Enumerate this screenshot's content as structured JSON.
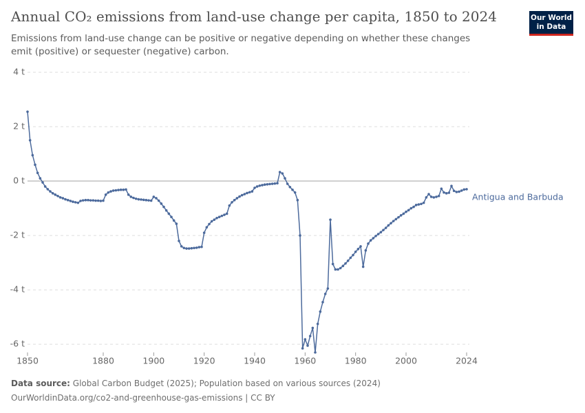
{
  "chart_data": {
    "type": "line",
    "title": "Annual CO₂ emissions from land-use change per capita, 1850 to 2024",
    "subtitle": "Emissions from land-use change can be positive or negative depending on whether these changes emit (positive) or sequester (negative) carbon.",
    "logo": [
      "Our World",
      "in Data"
    ],
    "source_label": "Data source:",
    "source": "Global Carbon Budget (2025); Population based on various sources (2024)",
    "url": "OurWorldinData.org/co2-and-greenhouse-gas-emissions | CC BY",
    "x": [
      1850,
      1851,
      1852,
      1853,
      1854,
      1855,
      1856,
      1857,
      1858,
      1859,
      1860,
      1861,
      1862,
      1863,
      1864,
      1865,
      1866,
      1867,
      1868,
      1869,
      1870,
      1871,
      1872,
      1873,
      1874,
      1875,
      1876,
      1877,
      1878,
      1879,
      1880,
      1881,
      1882,
      1883,
      1884,
      1885,
      1886,
      1887,
      1888,
      1889,
      1890,
      1891,
      1892,
      1893,
      1894,
      1895,
      1896,
      1897,
      1898,
      1899,
      1900,
      1901,
      1902,
      1903,
      1904,
      1905,
      1906,
      1907,
      1908,
      1909,
      1910,
      1911,
      1912,
      1913,
      1914,
      1915,
      1916,
      1917,
      1918,
      1919,
      1920,
      1921,
      1922,
      1923,
      1924,
      1925,
      1926,
      1927,
      1928,
      1929,
      1930,
      1931,
      1932,
      1933,
      1934,
      1935,
      1936,
      1937,
      1938,
      1939,
      1940,
      1941,
      1942,
      1943,
      1944,
      1945,
      1946,
      1947,
      1948,
      1949,
      1950,
      1951,
      1952,
      1953,
      1954,
      1955,
      1956,
      1957,
      1958,
      1959,
      1960,
      1961,
      1962,
      1963,
      1964,
      1965,
      1966,
      1967,
      1968,
      1969,
      1970,
      1971,
      1972,
      1973,
      1974,
      1975,
      1976,
      1977,
      1978,
      1979,
      1980,
      1981,
      1982,
      1983,
      1984,
      1985,
      1986,
      1987,
      1988,
      1989,
      1990,
      1991,
      1992,
      1993,
      1994,
      1995,
      1996,
      1997,
      1998,
      1999,
      2000,
      2001,
      2002,
      2003,
      2004,
      2005,
      2006,
      2007,
      2008,
      2009,
      2010,
      2011,
      2012,
      2013,
      2014,
      2015,
      2016,
      2017,
      2018,
      2019,
      2020,
      2021,
      2022,
      2023,
      2024
    ],
    "series": [
      {
        "name": "Antigua and Barbuda",
        "color": "#4c6a9c",
        "values": [
          2.55,
          1.5,
          0.95,
          0.6,
          0.3,
          0.1,
          -0.05,
          -0.2,
          -0.3,
          -0.38,
          -0.45,
          -0.5,
          -0.55,
          -0.6,
          -0.63,
          -0.67,
          -0.7,
          -0.73,
          -0.76,
          -0.78,
          -0.8,
          -0.73,
          -0.71,
          -0.7,
          -0.7,
          -0.71,
          -0.71,
          -0.72,
          -0.72,
          -0.73,
          -0.72,
          -0.5,
          -0.42,
          -0.38,
          -0.35,
          -0.34,
          -0.33,
          -0.32,
          -0.32,
          -0.31,
          -0.5,
          -0.58,
          -0.62,
          -0.65,
          -0.67,
          -0.68,
          -0.69,
          -0.7,
          -0.71,
          -0.72,
          -0.58,
          -0.63,
          -0.72,
          -0.83,
          -0.95,
          -1.08,
          -1.2,
          -1.32,
          -1.45,
          -1.57,
          -2.2,
          -2.4,
          -2.46,
          -2.48,
          -2.48,
          -2.47,
          -2.46,
          -2.45,
          -2.43,
          -2.42,
          -1.9,
          -1.7,
          -1.58,
          -1.48,
          -1.42,
          -1.36,
          -1.32,
          -1.28,
          -1.24,
          -1.2,
          -0.9,
          -0.78,
          -0.7,
          -0.63,
          -0.57,
          -0.52,
          -0.48,
          -0.44,
          -0.41,
          -0.38,
          -0.25,
          -0.2,
          -0.17,
          -0.15,
          -0.13,
          -0.12,
          -0.11,
          -0.1,
          -0.09,
          -0.08,
          0.33,
          0.28,
          0.1,
          -0.1,
          -0.22,
          -0.32,
          -0.42,
          -0.7,
          -2.0,
          -6.15,
          -5.82,
          -6.05,
          -5.7,
          -5.4,
          -6.3,
          -5.25,
          -4.8,
          -4.45,
          -4.15,
          -3.95,
          -1.42,
          -3.05,
          -3.25,
          -3.25,
          -3.2,
          -3.12,
          -3.03,
          -2.93,
          -2.82,
          -2.72,
          -2.6,
          -2.5,
          -2.4,
          -3.15,
          -2.55,
          -2.3,
          -2.18,
          -2.1,
          -2.02,
          -1.95,
          -1.88,
          -1.8,
          -1.72,
          -1.63,
          -1.55,
          -1.47,
          -1.4,
          -1.33,
          -1.26,
          -1.2,
          -1.13,
          -1.07,
          -1.0,
          -0.95,
          -0.88,
          -0.86,
          -0.84,
          -0.8,
          -0.6,
          -0.48,
          -0.58,
          -0.6,
          -0.58,
          -0.55,
          -0.28,
          -0.42,
          -0.45,
          -0.43,
          -0.18,
          -0.36,
          -0.4,
          -0.39,
          -0.35,
          -0.31,
          -0.3
        ]
      }
    ],
    "xlim": [
      1850,
      2024
    ],
    "ylim": [
      -6.3,
      4
    ],
    "xticks": [
      1850,
      1880,
      1900,
      1920,
      1940,
      1960,
      1980,
      2000,
      2024
    ],
    "yticks": [
      {
        "value": -6,
        "label": "-6 t"
      },
      {
        "value": -4,
        "label": "-4 t"
      },
      {
        "value": -2,
        "label": "-2 t"
      },
      {
        "value": 0,
        "label": "0 t"
      },
      {
        "value": 2,
        "label": "2 t"
      },
      {
        "value": 4,
        "label": "4 t"
      }
    ],
    "grid": true
  }
}
